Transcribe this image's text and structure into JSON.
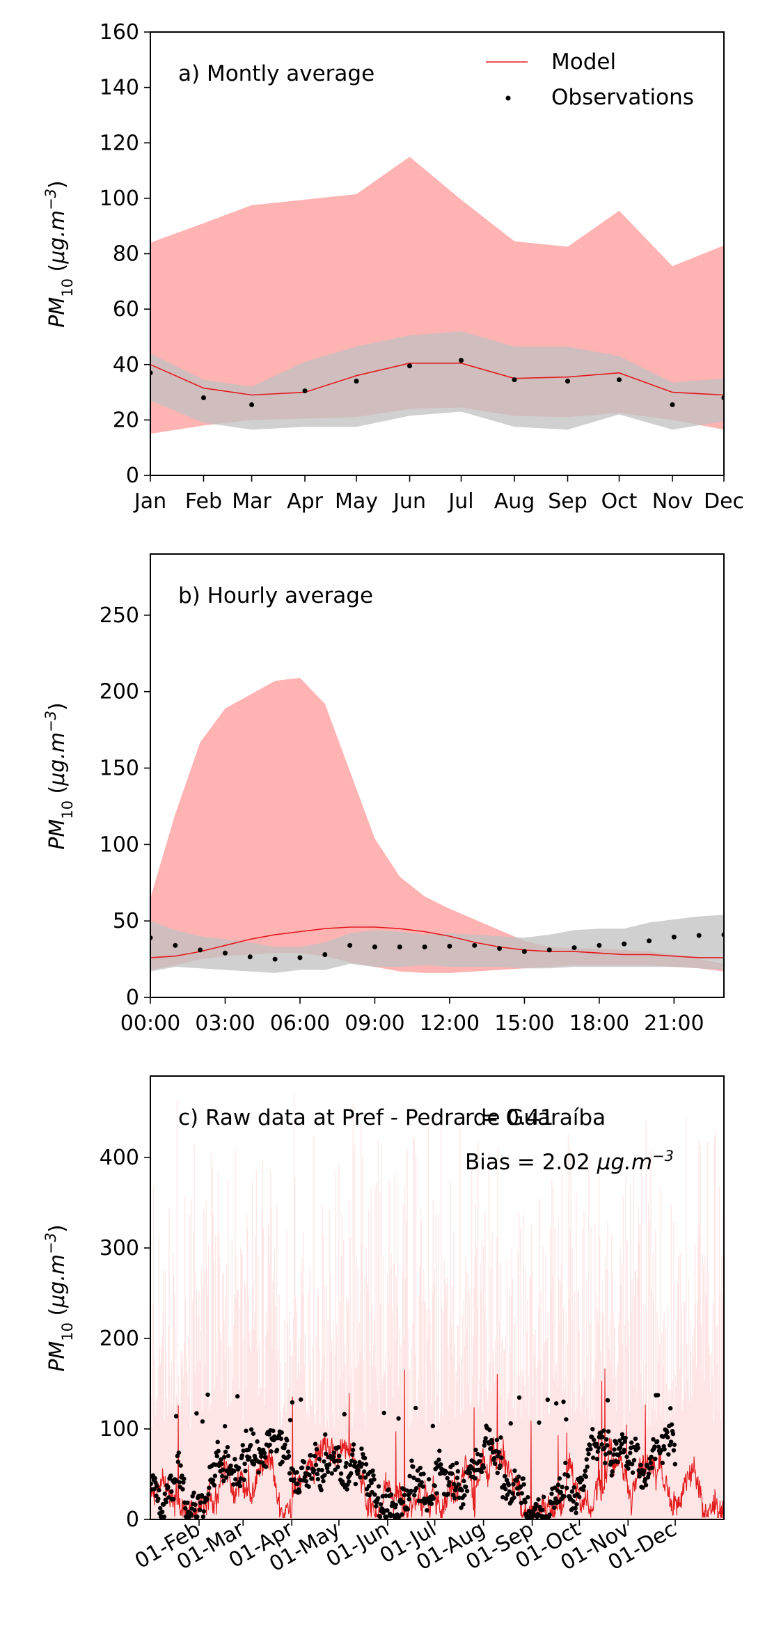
{
  "chart_data": [
    {
      "type": "line",
      "panel_label": "a) Montly average",
      "ylabel": "PM",
      "ylabel_sub": "10",
      "ylabel_units_prefix": " (",
      "ylabel_units": "μg.m",
      "ylabel_units_sup": "−3",
      "ylabel_units_suffix": ")",
      "ylim": [
        0,
        160
      ],
      "yticks": [
        0,
        20,
        40,
        60,
        80,
        100,
        120,
        140,
        160
      ],
      "categories": [
        "Jan",
        "Feb",
        "Mar",
        "Apr",
        "May",
        "Jun",
        "Jul",
        "Aug",
        "Sep",
        "Oct",
        "Nov",
        "Dec"
      ],
      "x": [
        0,
        31,
        59,
        90,
        120,
        151,
        181,
        212,
        243,
        273,
        304,
        334
      ],
      "xlim": [
        0,
        334
      ],
      "legend": {
        "placement": "top-right",
        "entries": [
          "Model",
          "Observations"
        ]
      },
      "series": [
        {
          "name": "Model",
          "kind": "line",
          "color": "#e31a1c",
          "values": [
            40,
            31.5,
            29,
            30,
            36,
            40.5,
            40.5,
            35,
            35.5,
            37,
            30,
            29
          ]
        },
        {
          "name": "Observations",
          "kind": "points",
          "color": "#000000",
          "values": [
            37,
            28,
            25.5,
            30.5,
            34,
            39.5,
            41.5,
            34.5,
            34,
            34.5,
            25.5,
            28
          ]
        },
        {
          "kind": "band",
          "color": "#ffb3b3",
          "low": [
            15,
            18,
            20,
            20.5,
            21,
            24,
            24.5,
            21.5,
            21,
            22.5,
            20,
            16.5
          ],
          "high": [
            84,
            91,
            97.5,
            99.5,
            101.5,
            115,
            99.5,
            84.5,
            82.5,
            95.5,
            75.5,
            83
          ]
        },
        {
          "kind": "band",
          "color": "#cccccc",
          "low": [
            27,
            19,
            16.5,
            17.5,
            17.5,
            21.5,
            23,
            17.5,
            16.5,
            22,
            16.5,
            19.5
          ],
          "high": [
            44,
            34.5,
            32,
            41,
            46.5,
            50.5,
            52,
            46.5,
            46.5,
            43,
            33.5,
            35
          ]
        }
      ]
    },
    {
      "type": "line",
      "panel_label": "b) Hourly average",
      "ylabel": "PM",
      "ylabel_sub": "10",
      "ylabel_units_prefix": " (",
      "ylabel_units": "μg.m",
      "ylabel_units_sup": "−3",
      "ylabel_units_suffix": ")",
      "ylim": [
        0,
        290
      ],
      "yticks": [
        0,
        50,
        100,
        150,
        200,
        250
      ],
      "xtick_labels": [
        "00:00",
        "03:00",
        "06:00",
        "09:00",
        "12:00",
        "15:00",
        "18:00",
        "21:00"
      ],
      "xtick_hours": [
        0,
        3,
        6,
        9,
        12,
        15,
        18,
        21
      ],
      "x": [
        0,
        1,
        2,
        3,
        4,
        5,
        6,
        7,
        8,
        9,
        10,
        11,
        12,
        13,
        14,
        15,
        16,
        17,
        18,
        19,
        20,
        21,
        22,
        23
      ],
      "xlim": [
        0,
        23
      ],
      "series": [
        {
          "name": "Model",
          "kind": "line",
          "color": "#e31a1c",
          "values": [
            26,
            27,
            30,
            34,
            38,
            41,
            43,
            45,
            46,
            46,
            45,
            43,
            40,
            36,
            33,
            31,
            30,
            30,
            29,
            28,
            28,
            27,
            26,
            26
          ]
        },
        {
          "name": "Observations",
          "kind": "points",
          "color": "#000000",
          "values": [
            39,
            34,
            31,
            29,
            26.5,
            25,
            26,
            28,
            34,
            33,
            33,
            33,
            33.5,
            34,
            32,
            30,
            31,
            32.5,
            34,
            35,
            37,
            39.5,
            40.5,
            41
          ]
        },
        {
          "kind": "band",
          "color": "#ffb3b3",
          "low": [
            18,
            21,
            25,
            27,
            28,
            29,
            29,
            27,
            23,
            20,
            17,
            16,
            16,
            17,
            18,
            19,
            20,
            21,
            21,
            21,
            21,
            20,
            19,
            17
          ],
          "high": [
            65,
            120,
            167,
            189,
            198,
            207,
            209,
            192,
            148,
            104,
            79,
            66,
            58,
            51,
            44,
            37,
            33,
            32,
            32,
            31,
            30,
            28,
            25,
            22
          ]
        },
        {
          "kind": "band",
          "color": "#cccccc",
          "low": [
            17,
            20,
            19,
            18,
            17,
            16,
            18,
            18,
            22,
            20,
            20,
            21,
            20,
            20,
            20,
            19,
            19,
            20,
            20,
            20,
            20,
            20,
            19,
            18
          ],
          "high": [
            50,
            44,
            40,
            38,
            36,
            33,
            33,
            36,
            42,
            44,
            43,
            41,
            42,
            41,
            40,
            39,
            41,
            44,
            45,
            45,
            49,
            51,
            53,
            54
          ]
        }
      ]
    },
    {
      "type": "line",
      "panel_label": "c) Raw data at Pref - Pedra de Guaraíba",
      "stat_r": "r = 0.41",
      "stat_bias": "Bias = 2.02 ",
      "stat_bias_units": "μg.m",
      "stat_bias_units_sup": "−3",
      "ylabel": "PM",
      "ylabel_sub": "10",
      "ylabel_units_prefix": " (",
      "ylabel_units": "μg.m",
      "ylabel_units_sup": "−3",
      "ylabel_units_suffix": ")",
      "ylim": [
        0,
        490
      ],
      "yticks": [
        0,
        100,
        200,
        300,
        400
      ],
      "xlim_days": [
        0,
        365
      ],
      "xtick_labels": [
        "01-Feb",
        "01-Mar",
        "01-Apr",
        "01-May",
        "01-Jun",
        "01-Jul",
        "01-Aug",
        "01-Sep",
        "01-Oct",
        "01-Nov",
        "01-Dec"
      ],
      "xtick_days": [
        31,
        59,
        90,
        120,
        151,
        181,
        212,
        243,
        273,
        304,
        334
      ],
      "observations_end_day": 334,
      "model_band_high_range": [
        100,
        480
      ],
      "series": [
        {
          "name": "Model",
          "kind": "line",
          "color": "#e31a1c",
          "typical_range": [
            5,
            80
          ],
          "peak_max": 170
        },
        {
          "name": "Observations",
          "kind": "points",
          "color": "#000000",
          "typical_range": [
            5,
            90
          ],
          "peak_max": 138
        },
        {
          "kind": "band",
          "color": "#ffd5d5"
        }
      ]
    }
  ]
}
